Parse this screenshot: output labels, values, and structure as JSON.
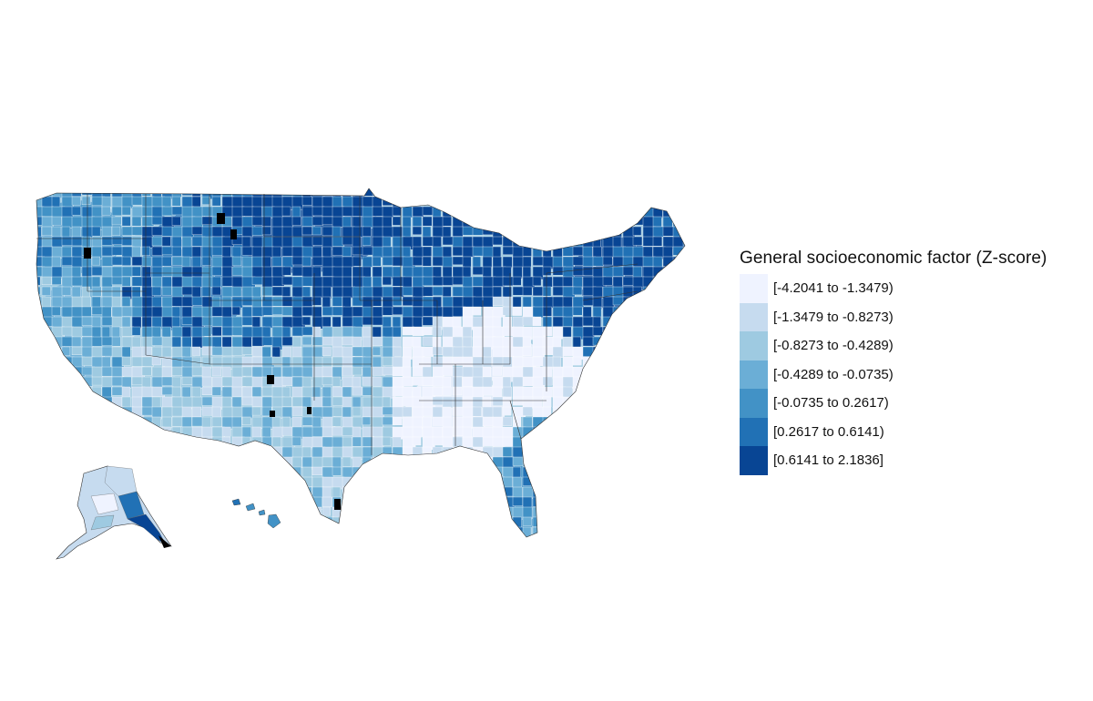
{
  "legend": {
    "title": "General socioeconomic factor (Z-score)",
    "classes": [
      {
        "label": "[-4.2041 to -1.3479)",
        "color": "#eff3ff"
      },
      {
        "label": "[-1.3479 to -0.8273)",
        "color": "#c6dbef"
      },
      {
        "label": "[-0.8273 to -0.4289)",
        "color": "#9ecae1"
      },
      {
        "label": "[-0.4289 to -0.0735)",
        "color": "#6baed6"
      },
      {
        "label": "[-0.0735 to 0.2617)",
        "color": "#4292c6"
      },
      {
        "label": "[0.2617 to 0.6141)",
        "color": "#2171b5"
      },
      {
        "label": "[0.6141 to 2.1836]",
        "color": "#084594"
      }
    ],
    "no_data_color": "#000000"
  },
  "map": {
    "region": "United States counties (contiguous US, Alaska, Hawaii)",
    "regional_pattern": [
      {
        "area": "Northern Plains / Upper Midwest",
        "class": 6
      },
      {
        "area": "Mountain West",
        "class": 5
      },
      {
        "area": "Northeast corridor",
        "class": 6
      },
      {
        "area": "Pacific Northwest",
        "class": 4
      },
      {
        "area": "California",
        "class": 3
      },
      {
        "area": "Southwest desert",
        "class": 2
      },
      {
        "area": "Texas",
        "class": 2
      },
      {
        "area": "Deep South",
        "class": 0
      },
      {
        "area": "Appalachia",
        "class": 0
      },
      {
        "area": "Florida",
        "class": 4
      },
      {
        "area": "Alaska",
        "class": 1
      },
      {
        "area": "Hawaii",
        "class": 4
      }
    ]
  }
}
